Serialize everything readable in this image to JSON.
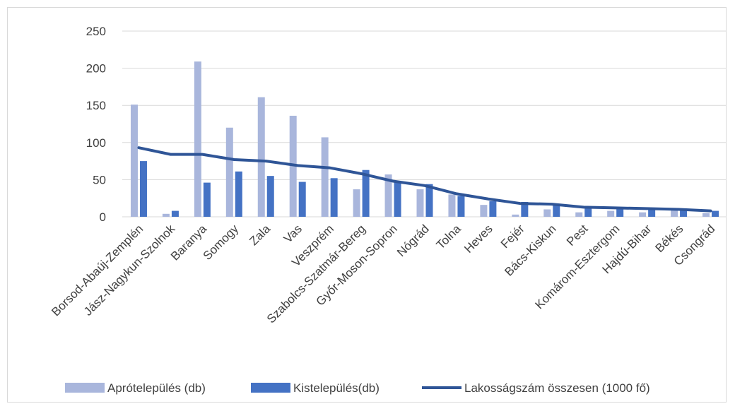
{
  "chart_data": {
    "type": "bar",
    "title": "",
    "xlabel": "",
    "ylabel": "",
    "ylim": [
      0,
      250
    ],
    "yticks": [
      0,
      50,
      100,
      150,
      200,
      250
    ],
    "grid": true,
    "legend_position": "bottom",
    "categories": [
      "Borsod-Abaúj-Zemplén",
      "Jász-Nagykun-Szolnok",
      "Baranya",
      "Somogy",
      "Zala",
      "Vas",
      "Veszprém",
      "Szabolcs-Szatmár-Bereg",
      "Győr-Moson-Sopron",
      "Nógrád",
      "Tolna",
      "Heves",
      "Fejér",
      "Bács-Kiskun",
      "Pest",
      "Komárom-Esztergom",
      "Hajdú-Bihar",
      "Békés",
      "Csongrád"
    ],
    "series": [
      {
        "name": "Aprótelepülés (db)",
        "kind": "bar",
        "color": "#a9b6dc",
        "values": [
          151,
          4,
          209,
          120,
          161,
          136,
          107,
          37,
          57,
          37,
          30,
          16,
          3,
          10,
          6,
          8,
          6,
          9,
          5
        ]
      },
      {
        "name": "Kistelepülés(db)",
        "kind": "bar",
        "color": "#4472c4",
        "values": [
          75,
          8,
          46,
          61,
          55,
          47,
          52,
          63,
          48,
          44,
          28,
          21,
          20,
          16,
          12,
          12,
          10,
          11,
          8
        ]
      },
      {
        "name": "Lakosságszám összesen (1000 fő)",
        "kind": "line",
        "color": "#2f5597",
        "values": [
          93,
          84,
          84,
          77,
          75,
          69,
          66,
          58,
          48,
          42,
          31,
          24,
          18,
          17,
          13,
          12,
          11,
          10,
          8
        ]
      }
    ]
  }
}
